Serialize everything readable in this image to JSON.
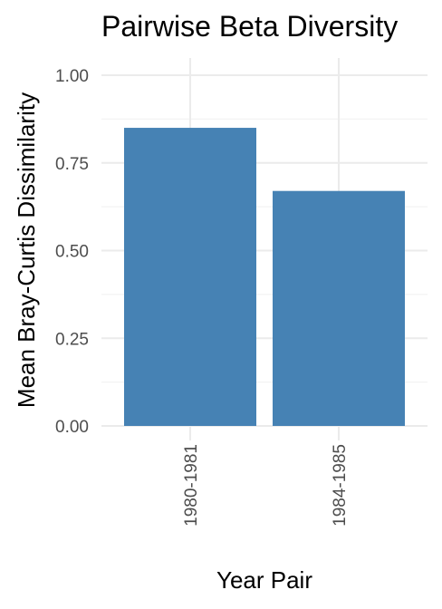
{
  "colors": {
    "bar_fill": "#4682b4",
    "background": "#ffffff",
    "grid": "#ebebeb",
    "tick_text": "#4d4d4d",
    "title_text": "#000000"
  },
  "chart_data": {
    "type": "bar",
    "title": "Pairwise Beta Diversity",
    "xlabel": "Year Pair",
    "ylabel": "Mean Bray-Curtis Dissimilarity",
    "categories": [
      "1980-1981",
      "1984-1985"
    ],
    "values": [
      0.85,
      0.67
    ],
    "ylim": [
      0,
      1.0
    ],
    "yticks": [
      0,
      0.25,
      0.5,
      0.75,
      1.0
    ],
    "ytick_labels": [
      "0.00",
      "0.25",
      "0.50",
      "0.75",
      "1.00"
    ],
    "grid": true,
    "legend": "none",
    "xtick_rotation": "vertical"
  }
}
